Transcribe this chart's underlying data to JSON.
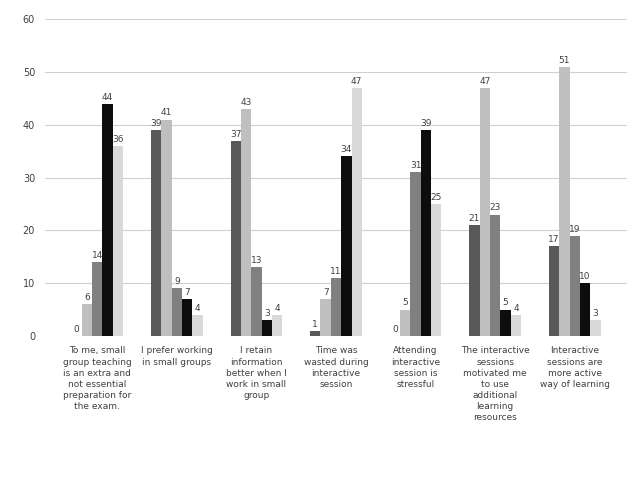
{
  "categories": [
    "To me, small\ngroup teaching\nis an extra and\nnot essential\npreparation for\nthe exam.",
    "I prefer working\nin small groups",
    "I retain\ninformation\nbetter when I\nwork in small\ngroup",
    "Time was\nwasted during\ninteractive\nsession",
    "Attending\ninteractive\nsession is\nstressful",
    "The interactive\nsessions\nmotivated me\nto use\nadditional\nlearning\nresources",
    "Interactive\nsessions are\nmore active\nway of learning"
  ],
  "series": {
    "Strongly agree": [
      0,
      39,
      37,
      1,
      0,
      21,
      17
    ],
    "Agree": [
      6,
      41,
      43,
      7,
      5,
      47,
      51
    ],
    "Neutral": [
      14,
      9,
      13,
      11,
      31,
      23,
      19
    ],
    "Disagree": [
      44,
      7,
      3,
      34,
      39,
      5,
      10
    ],
    "Strongly dis agree": [
      36,
      4,
      4,
      47,
      25,
      4,
      3
    ]
  },
  "colors": {
    "Strongly agree": "#595959",
    "Agree": "#bfbfbf",
    "Neutral": "#808080",
    "Disagree": "#0d0d0d",
    "Strongly dis agree": "#d9d9d9"
  },
  "ylim": [
    0,
    60
  ],
  "yticks": [
    0,
    10,
    20,
    30,
    40,
    50,
    60
  ],
  "bar_width": 0.13,
  "value_label_fontsize": 6.5,
  "legend_fontsize": 7.5,
  "tick_fontsize": 7,
  "xtick_fontsize": 6.5,
  "background_color": "#ffffff",
  "grid_color": "#d0d0d0"
}
